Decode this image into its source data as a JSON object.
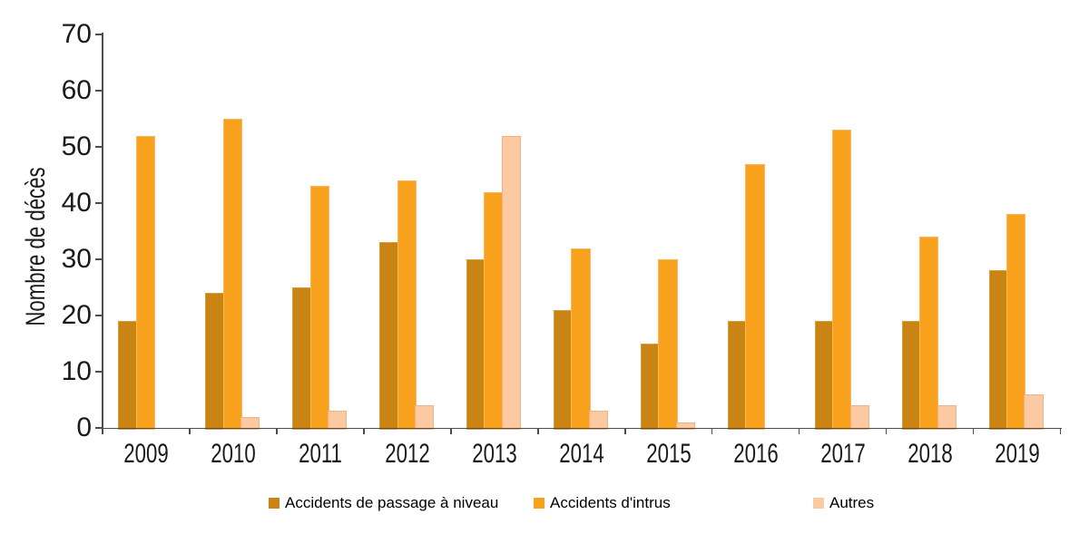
{
  "chart_data": {
    "type": "bar",
    "ylabel": "Nombre de décès",
    "xlabel": "",
    "ylim": [
      0,
      70
    ],
    "yticks": [
      0,
      10,
      20,
      30,
      40,
      50,
      60,
      70
    ],
    "grid": false,
    "legend_position": "bottom",
    "categories": [
      "2009",
      "2010",
      "2011",
      "2012",
      "2013",
      "2014",
      "2015",
      "2016",
      "2017",
      "2018",
      "2019"
    ],
    "series": [
      {
        "name": "Accidents de passage à niveau",
        "color": "#C98414",
        "border_color": "#D99F3F",
        "values": [
          19,
          24,
          25,
          33,
          30,
          21,
          15,
          19,
          19,
          19,
          28
        ]
      },
      {
        "name": "Accidents d'intrus",
        "color": "#F8A11D",
        "border_color": "#F9B75B",
        "values": [
          52,
          55,
          43,
          44,
          42,
          32,
          30,
          47,
          53,
          34,
          38
        ]
      },
      {
        "name": "Autres",
        "color": "#FBCAA2",
        "border_color": "#F2B182",
        "values": [
          0,
          2,
          3,
          4,
          52,
          3,
          1,
          0,
          4,
          4,
          6
        ]
      }
    ]
  },
  "colors": {
    "axis": "#4D4D4D",
    "text": "#1A1A1A",
    "background": "#FFFFFF"
  }
}
